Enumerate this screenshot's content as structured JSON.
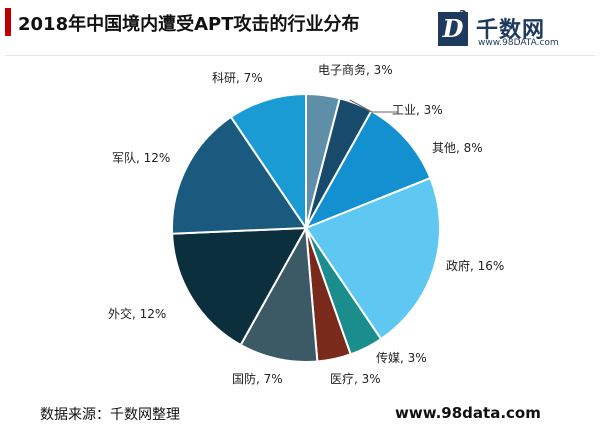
{
  "header": {
    "title": "2018年中国境内遭受APT攻击的行业分布"
  },
  "logo": {
    "mark": "D",
    "superscript": "3",
    "name": "千数网",
    "url": "www.98DATA.com"
  },
  "footer": {
    "source": "数据来源：千数网整理",
    "url": "www.98data.com"
  },
  "chart_data": {
    "type": "pie",
    "title": "2018年中国境内遭受APT攻击的行业分布",
    "slices": [
      {
        "label": "电子商务, 3%",
        "name": "电子商务",
        "value": 3,
        "color": "#5f8fa8"
      },
      {
        "label": "工业, 3%",
        "name": "工业",
        "value": 3,
        "color": "#174a6b"
      },
      {
        "label": "其他, 8%",
        "name": "其他",
        "value": 8,
        "color": "#1390cf"
      },
      {
        "label": "政府, 16%",
        "name": "政府",
        "value": 16,
        "color": "#5ec8f2"
      },
      {
        "label": "传媒, 3%",
        "name": "传媒",
        "value": 3,
        "color": "#1c8d8d"
      },
      {
        "label": "医疗, 3%",
        "name": "医疗",
        "value": 3,
        "color": "#7a2a1a"
      },
      {
        "label": "国防, 7%",
        "name": "国防",
        "value": 7,
        "color": "#3c5966"
      },
      {
        "label": "外交, 12%",
        "name": "外交",
        "value": 12,
        "color": "#0b2f3c"
      },
      {
        "label": "军队, 12%",
        "name": "军队",
        "value": 12,
        "color": "#1a5a7e"
      },
      {
        "label": "科研, 7%",
        "name": "科研",
        "value": 7,
        "color": "#1a9bd3"
      }
    ]
  }
}
